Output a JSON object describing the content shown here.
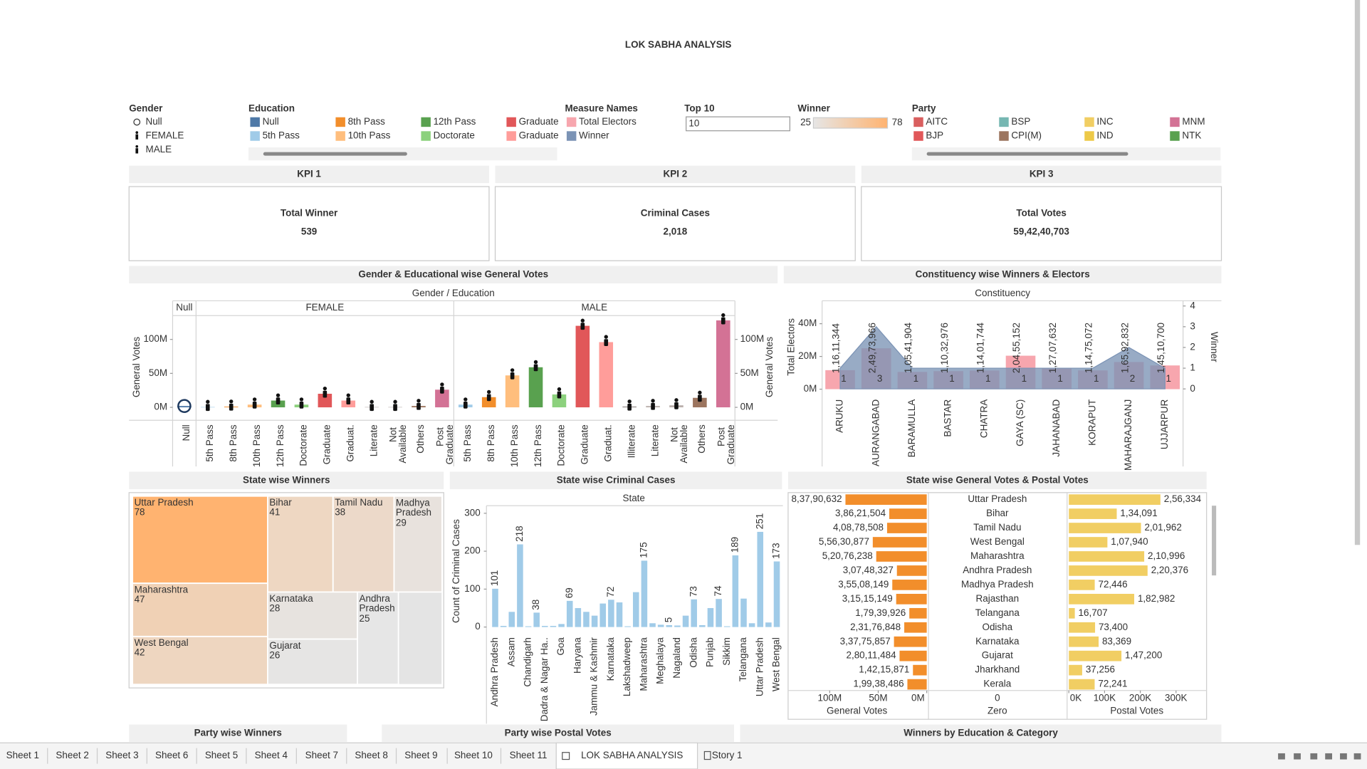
{
  "title": "LOK SABHA ANALYSIS",
  "filters": {
    "gender": {
      "title": "Gender",
      "items": [
        {
          "label": "Null",
          "icon": "circle"
        },
        {
          "label": "FEMALE",
          "icon": "person"
        },
        {
          "label": "MALE",
          "icon": "person"
        }
      ]
    },
    "education": {
      "title": "Education",
      "items": [
        {
          "label": "Null",
          "color": "#4e79a7"
        },
        {
          "label": "5th Pass",
          "color": "#a0cbe8"
        },
        {
          "label": "8th Pass",
          "color": "#f28e2b"
        },
        {
          "label": "10th Pass",
          "color": "#ffbe7d"
        },
        {
          "label": "12th Pass",
          "color": "#59a14f"
        },
        {
          "label": "Doctorate",
          "color": "#8cd17d"
        },
        {
          "label": "Graduate",
          "color": "#e15759"
        },
        {
          "label": "Graduate",
          "color": "#ff9d9a"
        }
      ]
    },
    "measure_names": {
      "title": "Measure Names",
      "items": [
        {
          "label": "Total Electors",
          "color": "#f7a6ae"
        },
        {
          "label": "Winner",
          "color": "#7b93b5"
        }
      ]
    },
    "top10": {
      "title": "Top 10",
      "value": "10"
    },
    "winner": {
      "title": "Winner",
      "min": 25,
      "max": 78,
      "colors": [
        "#e6e6e6",
        "#ffb370"
      ]
    },
    "party": {
      "title": "Party",
      "items": [
        {
          "label": "AITC",
          "color": "#d95f5f"
        },
        {
          "label": "BJP",
          "color": "#e15759"
        },
        {
          "label": "BSP",
          "color": "#76b7b2"
        },
        {
          "label": "CPI(M)",
          "color": "#9c755f"
        },
        {
          "label": "INC",
          "color": "#f1ce63"
        },
        {
          "label": "IND",
          "color": "#edc948"
        },
        {
          "label": "MNM",
          "color": "#d37295"
        },
        {
          "label": "NTK",
          "color": "#59a14f"
        }
      ]
    }
  },
  "kpis": [
    {
      "header": "KPI 1",
      "label": "Total Winner",
      "value": "539"
    },
    {
      "header": "KPI 2",
      "label": "Criminal Cases",
      "value": "2,018"
    },
    {
      "header": "KPI 3",
      "label": "Total Votes",
      "value": "59,42,40,703"
    }
  ],
  "gender_education": {
    "type": "bar",
    "title": "Gender & Educational wise General Votes",
    "header": "Gender / Education",
    "y_label": "General Votes",
    "ylim": [
      -19,
      135
    ],
    "yticks": [
      {
        "value": 0,
        "label": "0M"
      },
      {
        "value": 50,
        "label": "50M"
      },
      {
        "value": 100,
        "label": "100M"
      }
    ],
    "groups": [
      {
        "name": "Null",
        "marker": "circle",
        "categories": [
          "Null"
        ],
        "values": [
          2
        ],
        "colors": [
          "#4e79a7"
        ]
      },
      {
        "name": "FEMALE",
        "marker": "person",
        "categories": [
          "5th Pass",
          "8th Pass",
          "10th Pass",
          "12th Pass",
          "Doctorate",
          "Graduate",
          "Graduat.",
          "Literate",
          "Not Available",
          "Others",
          "Post Graduate"
        ],
        "values": [
          0.5,
          1,
          4,
          10,
          4,
          20,
          10,
          0.5,
          0.5,
          2,
          26
        ],
        "colors": [
          "#a0cbe8",
          "#f28e2b",
          "#ffbe7d",
          "#59a14f",
          "#8cd17d",
          "#e15759",
          "#ff9d9a",
          "#bab0ac",
          "#bab0ac",
          "#9c755f",
          "#d37295"
        ]
      },
      {
        "name": "MALE",
        "marker": "person",
        "categories": [
          "5th Pass",
          "8th Pass",
          "10th Pass",
          "12th Pass",
          "Doctorate",
          "Graduate",
          "Graduat.",
          "Illiterate",
          "Literate",
          "Not Available",
          "Others",
          "Post Graduate"
        ],
        "values": [
          4,
          15,
          47,
          59,
          19,
          120,
          96,
          1,
          2,
          3,
          14,
          128
        ],
        "colors": [
          "#a0cbe8",
          "#f28e2b",
          "#ffbe7d",
          "#59a14f",
          "#8cd17d",
          "#e15759",
          "#ff9d9a",
          "#79706e",
          "#bab0ac",
          "#bab0ac",
          "#9c755f",
          "#d37295"
        ]
      }
    ]
  },
  "constituency": {
    "type": "bar",
    "title": "Constituency wise Winners & Electors",
    "header": "Constituency",
    "y_label": "Total Electors",
    "y2_label": "Winner",
    "categories": [
      "ARUKU",
      "AURANGABAD",
      "BARAMULLA",
      "BASTAR",
      "CHATRA",
      "GAYA (SC)",
      "JAHANABAD",
      "KORAPUT",
      "MAHARAJGANJ",
      "UJJARPUR"
    ],
    "series": [
      {
        "name": "Total Electors",
        "color": "#f7a6ae",
        "values": [
          11611344,
          24973966,
          10541904,
          11032976,
          11401744,
          20455152,
          12707632,
          11475072,
          16592832,
          14510700
        ],
        "value_labels": [
          "1,16,11,344",
          "2,49,73,966",
          "1,05,41,904",
          "1,10,32,976",
          "1,14,01,744",
          "2,04,55,152",
          "1,27,07,632",
          "1,14,75,072",
          "1,65,92,832",
          "1,45,10,700"
        ]
      },
      {
        "name": "Winner",
        "color": "#7b93b5",
        "axis": "y2",
        "values": [
          1,
          3,
          1,
          1,
          1,
          1,
          1,
          1,
          2,
          1
        ]
      }
    ],
    "ylim": [
      -3000000,
      54000000
    ],
    "yticks": [
      {
        "value": 0,
        "label": "0M"
      },
      {
        "value": 20000000,
        "label": "20M"
      },
      {
        "value": 40000000,
        "label": "40M"
      }
    ],
    "y2lim": [
      -0.25,
      4.25
    ],
    "y2ticks": [
      0,
      1,
      2,
      3,
      4
    ]
  },
  "state_winners": {
    "type": "treemap",
    "title": "State wise Winners",
    "categories": [
      "Uttar Pradesh",
      "Bihar",
      "Tamil Nadu",
      "Madhya Pradesh",
      "Maharashtra",
      "West Bengal",
      "Karnataka",
      "Gujarat",
      "Andhra Pradesh"
    ],
    "values": [
      78,
      41,
      38,
      29,
      47,
      42,
      28,
      26,
      25
    ]
  },
  "state_criminal": {
    "type": "bar",
    "title": "State wise Criminal Cases",
    "header": "State",
    "y_label": "Count of Criminal Cases",
    "color": "#a0cbe8",
    "categories": [
      "Andhra Pradesh",
      null,
      "Assam",
      null,
      "Chandigarh",
      null,
      "Dadra & Nagar Ha..",
      null,
      "Goa",
      null,
      "Haryana",
      null,
      "Jammu & Kashmir",
      null,
      "Karnataka",
      null,
      "Lakshadweep",
      null,
      "Maharashtra",
      null,
      "Meghalaya",
      null,
      "Nagaland",
      null,
      "Odisha",
      null,
      "Punjab",
      null,
      "Sikkim",
      null,
      "Telangana",
      null,
      "Uttar Pradesh",
      null,
      "West Bengal"
    ],
    "values": [
      101,
      3,
      40,
      218,
      2,
      38,
      3,
      3,
      8,
      69,
      50,
      40,
      30,
      62,
      72,
      65,
      2,
      92,
      175,
      10,
      6,
      5,
      4,
      30,
      73,
      5,
      50,
      74,
      2,
      189,
      75,
      10,
      251,
      12,
      173
    ],
    "value_labels": [
      "101",
      null,
      null,
      "218",
      null,
      "38",
      null,
      null,
      null,
      "69",
      null,
      null,
      null,
      null,
      "72",
      null,
      null,
      null,
      "175",
      null,
      null,
      "5",
      null,
      null,
      "73",
      null,
      null,
      "74",
      null,
      "189",
      null,
      null,
      "251",
      null,
      "173"
    ],
    "ylim": [
      -18,
      320
    ],
    "yticks": [
      0,
      100,
      200,
      300
    ]
  },
  "state_votes": {
    "type": "bar",
    "title": "State wise General Votes & Postal Votes",
    "categories": [
      "Uttar Pradesh",
      "Bihar",
      "Tamil Nadu",
      "West Bengal",
      "Maharashtra",
      "Andhra Pradesh",
      "Madhya Pradesh",
      "Rajasthan",
      "Telangana",
      "Odisha",
      "Karnataka",
      "Gujarat",
      "Jharkhand",
      "Kerala"
    ],
    "series": [
      {
        "name": "General Votes",
        "color": "#f28e2b",
        "values": [
          83790632,
          38621504,
          40878508,
          55630877,
          52076238,
          30748327,
          35508149,
          31515149,
          17939926,
          23176848,
          33775857,
          28011484,
          14215871,
          19938486
        ],
        "value_labels": [
          "8,37,90,632",
          "3,86,21,504",
          "4,08,78,508",
          "5,56,30,877",
          "5,20,76,238",
          "3,07,48,327",
          "3,55,08,149",
          "3,15,15,149",
          "1,79,39,926",
          "2,31,76,848",
          "3,37,75,857",
          "2,80,11,484",
          "1,42,15,871",
          "1,99,38,486"
        ],
        "xlim": [
          142000000,
          0
        ],
        "xticks": [
          {
            "value": 100000000,
            "label": "100M"
          },
          {
            "value": 50000000,
            "label": "50M"
          },
          {
            "value": 0,
            "label": "0M"
          }
        ]
      },
      {
        "name": "Postal Votes",
        "color": "#f1ce63",
        "values": [
          256334,
          134091,
          201962,
          107940,
          210996,
          220376,
          72446,
          182982,
          16707,
          73400,
          83369,
          147200,
          37256,
          72241
        ],
        "value_labels": [
          "2,56,334",
          "1,34,091",
          "2,01,962",
          "1,07,940",
          "2,10,996",
          "2,20,376",
          "72,446",
          "1,82,982",
          "16,707",
          "73,400",
          "83,369",
          "1,47,200",
          "37,256",
          "72,241"
        ],
        "xlim": [
          0,
          388000
        ],
        "xticks": [
          {
            "value": 0,
            "label": "0K"
          },
          {
            "value": 100000,
            "label": "100K"
          },
          {
            "value": 200000,
            "label": "200K"
          },
          {
            "value": 300000,
            "label": "300K"
          }
        ]
      }
    ],
    "zero_axis": {
      "label": "Zero",
      "ticks": [
        0
      ]
    }
  },
  "bottom_titles": [
    "Party wise Winners",
    "Party wise Postal Votes",
    "Winners by Education & Category"
  ],
  "tabs": [
    {
      "label": "Sheet 1"
    },
    {
      "label": "Sheet 2"
    },
    {
      "label": "Sheet 3"
    },
    {
      "label": "Sheet 6"
    },
    {
      "label": "Sheet 5"
    },
    {
      "label": "Sheet 4"
    },
    {
      "label": "Sheet 7"
    },
    {
      "label": "Sheet 8"
    },
    {
      "label": "Sheet 9"
    },
    {
      "label": "Sheet 10"
    },
    {
      "label": "Sheet 11"
    },
    {
      "label": "LOK SABHA ANALYSIS",
      "active": true
    },
    {
      "label": "Story 1"
    }
  ]
}
